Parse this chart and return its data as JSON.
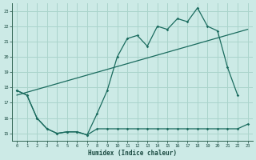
{
  "bg_color": "#cceae6",
  "grid_color": "#aad4cc",
  "line_color": "#1a6b5e",
  "xlabel": "Humidex (Indice chaleur)",
  "xlim": [
    -0.5,
    23.5
  ],
  "ylim": [
    14.5,
    23.5
  ],
  "xticks": [
    0,
    1,
    2,
    3,
    4,
    5,
    6,
    7,
    8,
    9,
    10,
    11,
    12,
    13,
    14,
    15,
    16,
    17,
    18,
    19,
    20,
    21,
    22,
    23
  ],
  "yticks": [
    15,
    16,
    17,
    18,
    19,
    20,
    21,
    22,
    23
  ],
  "series1_x": [
    0,
    1,
    2,
    3,
    4,
    5,
    6,
    7,
    8,
    9,
    10,
    11,
    12,
    13,
    14,
    15,
    16,
    17,
    18,
    19,
    20,
    21,
    22
  ],
  "series1_y": [
    17.8,
    17.5,
    16.0,
    15.3,
    15.0,
    15.1,
    15.1,
    14.9,
    16.3,
    17.8,
    20.0,
    21.2,
    21.4,
    20.7,
    22.0,
    21.8,
    22.5,
    22.3,
    23.2,
    22.0,
    21.7,
    19.3,
    17.5
  ],
  "series2_x": [
    0,
    23
  ],
  "series2_y": [
    17.5,
    21.8
  ],
  "series3_x": [
    0,
    1,
    2,
    3,
    4,
    5,
    6,
    7,
    8,
    9,
    10,
    11,
    12,
    13,
    14,
    15,
    16,
    17,
    18,
    19,
    20,
    21,
    22,
    23
  ],
  "series3_y": [
    17.8,
    17.5,
    16.0,
    15.3,
    15.0,
    15.1,
    15.1,
    14.9,
    15.3,
    15.3,
    15.3,
    15.3,
    15.3,
    15.3,
    15.3,
    15.3,
    15.3,
    15.3,
    15.3,
    15.3,
    15.3,
    15.3,
    15.3,
    15.6
  ]
}
